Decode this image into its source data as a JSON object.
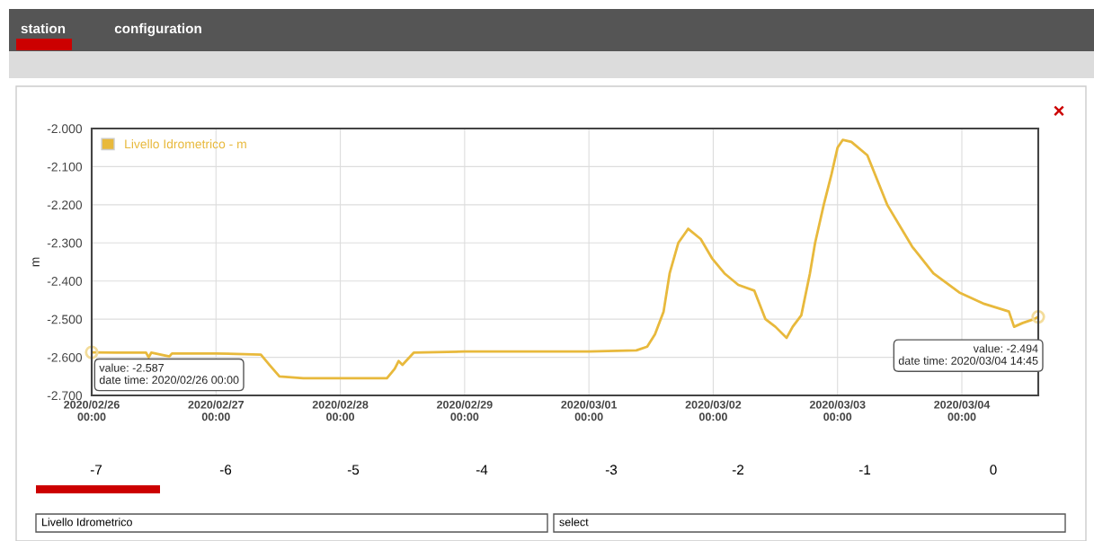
{
  "chart_data": {
    "type": "line",
    "ylabel": "m",
    "x": [
      "2020-02-26T00:00",
      "2020-02-26T04:50",
      "2020-02-26T10:30",
      "2020-02-26T11:00",
      "2020-02-26T11:30",
      "2020-02-26T15:00",
      "2020-02-26T15:30",
      "2020-02-27T00:00",
      "2020-02-27T08:40",
      "2020-02-27T10:20",
      "2020-02-27T12:15",
      "2020-02-27T16:50",
      "2020-02-28T00:00",
      "2020-02-28T09:00",
      "2020-02-28T10:30",
      "2020-02-28T11:15",
      "2020-02-28T12:00",
      "2020-02-28T13:00",
      "2020-02-28T14:10",
      "2020-02-29T00:00",
      "2020-03-01T00:00",
      "2020-03-01T09:10",
      "2020-03-01T11:15",
      "2020-03-01T12:45",
      "2020-03-01T14:25",
      "2020-03-01T15:35",
      "2020-03-01T17:15",
      "2020-03-01T19:10",
      "2020-03-01T21:35",
      "2020-03-01T23:45",
      "2020-03-02T02:10",
      "2020-03-02T04:50",
      "2020-03-02T07:55",
      "2020-03-02T10:05",
      "2020-03-02T12:00",
      "2020-03-02T14:10",
      "2020-03-02T15:20",
      "2020-03-02T17:00",
      "2020-03-02T18:40",
      "2020-03-02T19:40",
      "2020-03-02T21:20",
      "2020-03-02T22:50",
      "2020-03-03T00:00",
      "2020-03-03T01:00",
      "2020-03-03T02:40",
      "2020-03-03T05:45",
      "2020-03-03T09:35",
      "2020-03-03T14:25",
      "2020-03-03T18:30",
      "2020-03-03T23:30",
      "2020-03-04T04:20",
      "2020-03-04T09:05",
      "2020-03-04T10:05",
      "2020-03-04T11:45",
      "2020-03-04T13:55",
      "2020-03-04T14:45"
    ],
    "series": [
      {
        "name": "Livello Idrometrico - m",
        "color": "#e8b93c",
        "values": [
          -2.587,
          -2.588,
          -2.588,
          -2.6,
          -2.588,
          -2.598,
          -2.59,
          -2.59,
          -2.593,
          -2.62,
          -2.65,
          -2.655,
          -2.655,
          -2.655,
          -2.63,
          -2.61,
          -2.62,
          -2.605,
          -2.588,
          -2.585,
          -2.585,
          -2.582,
          -2.572,
          -2.54,
          -2.48,
          -2.38,
          -2.3,
          -2.263,
          -2.29,
          -2.34,
          -2.38,
          -2.41,
          -2.425,
          -2.5,
          -2.52,
          -2.549,
          -2.52,
          -2.49,
          -2.38,
          -2.3,
          -2.2,
          -2.12,
          -2.05,
          -2.03,
          -2.035,
          -2.07,
          -2.2,
          -2.31,
          -2.38,
          -2.43,
          -2.46,
          -2.48,
          -2.52,
          -2.51,
          -2.5,
          -2.494
        ]
      }
    ],
    "xlim": [
      "2020-02-26T00:00",
      "2020-03-04T14:45"
    ],
    "xticks": [
      {
        "value": "2020-02-26T00:00",
        "label": "2020/02/26\n00:00"
      },
      {
        "value": "2020-02-27T00:00",
        "label": "2020/02/27\n00:00"
      },
      {
        "value": "2020-02-28T00:00",
        "label": "2020/02/28\n00:00"
      },
      {
        "value": "2020-02-29T00:00",
        "label": "2020/02/29\n00:00"
      },
      {
        "value": "2020-03-01T00:00",
        "label": "2020/03/01\n00:00"
      },
      {
        "value": "2020-03-02T00:00",
        "label": "2020/03/02\n00:00"
      },
      {
        "value": "2020-03-03T00:00",
        "label": "2020/03/03\n00:00"
      },
      {
        "value": "2020-03-04T00:00",
        "label": "2020/03/04\n00:00"
      }
    ],
    "ylim": [
      -2.7,
      -2.0
    ],
    "yticks": [
      {
        "value": -2.7,
        "label": "-2.700"
      },
      {
        "value": -2.6,
        "label": "-2.600"
      },
      {
        "value": -2.5,
        "label": "-2.500"
      },
      {
        "value": -2.4,
        "label": "-2.400"
      },
      {
        "value": -2.3,
        "label": "-2.300"
      },
      {
        "value": -2.2,
        "label": "-2.200"
      },
      {
        "value": -2.1,
        "label": "-2.100"
      },
      {
        "value": -2.0,
        "label": "-2.000"
      }
    ],
    "grid": true,
    "legend": "top left",
    "line_style": "solid",
    "annotations": [
      {
        "text": "value: -2.587\ndate time: 2020/02/26 00:00",
        "x": "2020-02-26T00:00",
        "y": -2.587
      },
      {
        "text": "value: -2.494\ndate time: 2020/03/04 14:45",
        "x": "2020-03-04T14:45",
        "y": -2.494
      },
      "station",
      "configuration",
      "×",
      "-7",
      "-6",
      "-5",
      "-4",
      "-3",
      "-2",
      "-1",
      "0",
      "Livello Idrometrico",
      "select"
    ]
  }
}
